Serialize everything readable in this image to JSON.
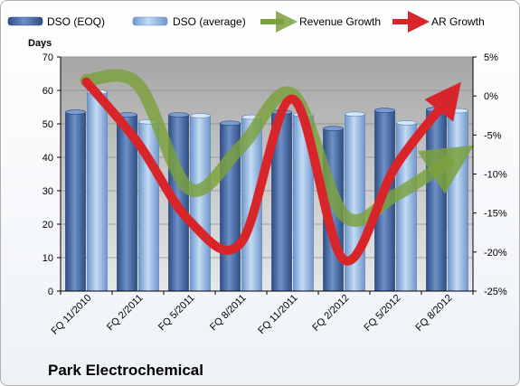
{
  "chart_data": {
    "type": "bar",
    "title": "Park Electrochemical",
    "ylabel": "Days",
    "categories": [
      "FQ 11/2010",
      "FQ 2/2011",
      "FQ 5/2011",
      "FQ 8/2011",
      "FQ 11/2011",
      "FQ 2/2012",
      "FQ 5/2012",
      "FQ 8/2012"
    ],
    "ylim": [
      0,
      70
    ],
    "y_ticks": [
      "0",
      "10",
      "20",
      "30",
      "40",
      "50",
      "60",
      "70"
    ],
    "y2lim": [
      -25,
      5
    ],
    "y2_ticks": [
      "5%",
      "0%",
      "-5%",
      "-10%",
      "-15%",
      "-20%",
      "-25%"
    ],
    "grid": true,
    "legend_position": "top",
    "series": [
      {
        "name": "DSO (EOQ)",
        "type": "bar",
        "axis": "left",
        "color": "#4a6ea8",
        "values": [
          53.5,
          52.7,
          52.7,
          50.2,
          53.5,
          48.6,
          54.0,
          54.3
        ]
      },
      {
        "name": "DSO (average)",
        "type": "bar",
        "axis": "left",
        "color": "#9dbfe6",
        "values": [
          59.5,
          50.6,
          52.4,
          52.0,
          52.8,
          52.9,
          50.3,
          53.9
        ]
      },
      {
        "name": "Revenue Growth",
        "type": "line",
        "axis": "right",
        "color": "#7ba13d",
        "values": [
          2.0,
          1.5,
          -11.9,
          -6.5,
          0.2,
          -15.3,
          -12.7,
          -8.5
        ]
      },
      {
        "name": "AR Growth",
        "type": "line",
        "axis": "right",
        "color": "#d8252a",
        "values": [
          1.8,
          -6.0,
          -16.0,
          -18.8,
          -0.4,
          -21.0,
          -9.0,
          -0.5
        ]
      }
    ]
  }
}
